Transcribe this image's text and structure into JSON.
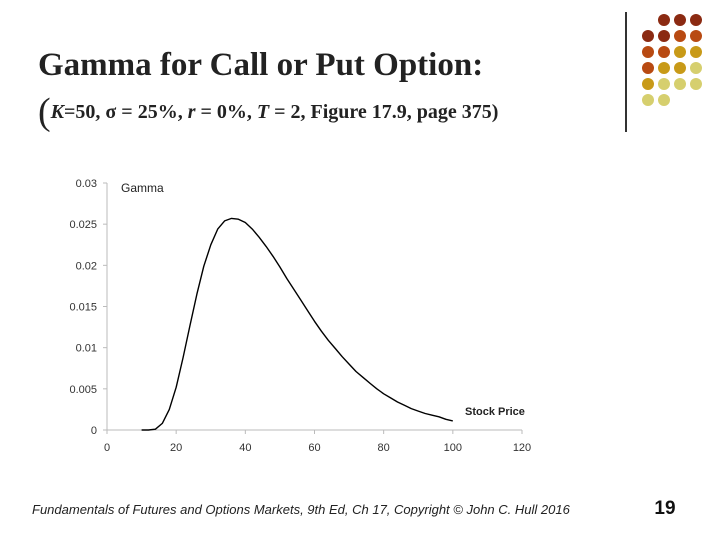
{
  "slide": {
    "title": "Gamma for Call or Put Option:",
    "subtitle_open_paren": "(",
    "subtitle_k_label": "K",
    "subtitle_k_value": "=50, ",
    "subtitle_sigma": "σ",
    "subtitle_sigma_value": " = 25%, ",
    "subtitle_r_label": "r",
    "subtitle_r_value": " = 0%, ",
    "subtitle_t_label": "T",
    "subtitle_t_value": " = 2, Figure 17.9, page 375)",
    "footer": "Fundamentals of Futures and Options Markets, 9th Ed, Ch 17, Copyright © John C. Hull 2016",
    "page_number": "19"
  },
  "decor": {
    "dot_colors": [
      [
        "#8B2A12",
        "#8B2A12",
        "#8B2A12"
      ],
      [
        "#8B2A12",
        "#8B2A12",
        "#B84A12",
        "#B84A12"
      ],
      [
        "#B84A12",
        "#B84A12",
        "#C89A18",
        "#C89A18"
      ],
      [
        "#B84A12",
        "#C89A18",
        "#C89A18",
        "#D6CF6E"
      ],
      [
        "#C89A18",
        "#D6CF6E",
        "#D6CF6E",
        "#D6CF6E"
      ],
      [
        "#D6CF6E",
        "#D6CF6E"
      ]
    ]
  },
  "chart_data": {
    "type": "line",
    "ylabel": "Gamma",
    "xlabel": "Stock Price",
    "xlim": [
      0,
      120
    ],
    "ylim": [
      0,
      0.03
    ],
    "x_ticks": [
      "0",
      "20",
      "40",
      "60",
      "80",
      "100",
      "120"
    ],
    "y_ticks": [
      "0",
      "0.005",
      "0.01",
      "0.015",
      "0.02",
      "0.025",
      "0.03"
    ],
    "line_color": "#000000",
    "grid": false,
    "series": [
      {
        "x": [
          10,
          12,
          14,
          16,
          18,
          20,
          22,
          24,
          26,
          28,
          30,
          32,
          34,
          36,
          38,
          40,
          42,
          44,
          46,
          48,
          50,
          52,
          54,
          56,
          58,
          60,
          62,
          64,
          66,
          68,
          70,
          72,
          74,
          76,
          78,
          80,
          82,
          84,
          86,
          88,
          90,
          92,
          94,
          96,
          98,
          100
        ],
        "values": [
          0.0,
          0.0,
          0.0001,
          0.0008,
          0.0025,
          0.0052,
          0.0088,
          0.0127,
          0.0165,
          0.0199,
          0.0225,
          0.0244,
          0.0254,
          0.0257,
          0.0256,
          0.0252,
          0.0244,
          0.0234,
          0.0223,
          0.0211,
          0.0198,
          0.0184,
          0.0171,
          0.0158,
          0.0145,
          0.0132,
          0.012,
          0.0109,
          0.0099,
          0.0089,
          0.008,
          0.0071,
          0.0064,
          0.0057,
          0.005,
          0.0044,
          0.0039,
          0.0034,
          0.003,
          0.0026,
          0.0023,
          0.002,
          0.0018,
          0.0016,
          0.0013,
          0.0011
        ]
      }
    ]
  }
}
